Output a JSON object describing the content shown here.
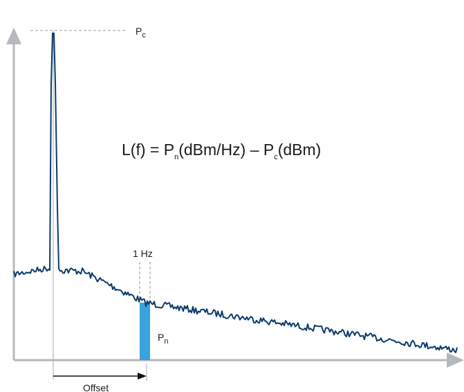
{
  "labels": {
    "carrier_power": {
      "main": "P",
      "sub": "c"
    },
    "formula": {
      "lhs": "L(f) = P",
      "n_sub": "n",
      "middle": "(dBm/Hz) – P",
      "c_sub": "c",
      "tail": "(dBm)"
    },
    "bandwidth": "1 Hz",
    "noise_power": {
      "main": "P",
      "sub": "n"
    },
    "offset": "Offset"
  },
  "colors": {
    "trace": "#0b3a6b",
    "band_fill": "#3aa2dd",
    "axis": "#b5b8bc",
    "guide": "#9a9a9a",
    "text": "#1a1a1a"
  }
}
